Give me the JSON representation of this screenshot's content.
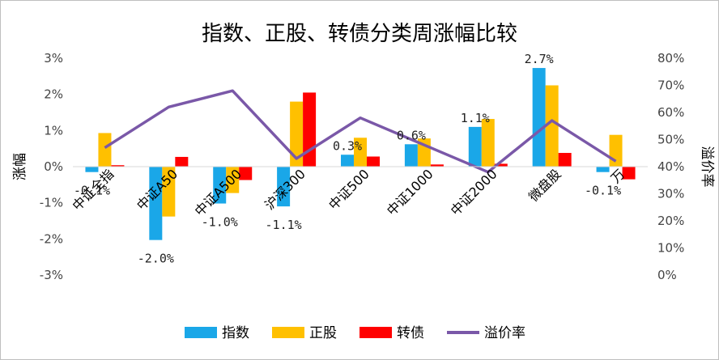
{
  "chart_data": {
    "type": "bar",
    "title": "指数、正股、转债分类周涨幅比较",
    "categories": [
      "中证全指",
      "中证A50",
      "中证A500",
      "沪深300",
      "中证500",
      "中证1000",
      "中证2000",
      "微盘股",
      "万得全A"
    ],
    "category_labels_visible": [
      "中证全指",
      "中证A50",
      "中证A500",
      "沪深300",
      "中证500",
      "中证1000",
      "中证2000",
      "微盘股",
      "万"
    ],
    "ylabel": "涨幅",
    "y2label": "溢价率",
    "ylim": [
      -3,
      3
    ],
    "y2lim": [
      0,
      80
    ],
    "yticks": [
      "3%",
      "2%",
      "1%",
      "0%",
      "-1%",
      "-2%",
      "-3%"
    ],
    "y2ticks": [
      "80%",
      "70%",
      "60%",
      "50%",
      "40%",
      "30%",
      "20%",
      "10%",
      "0%"
    ],
    "series": [
      {
        "name": "指数",
        "type": "bar",
        "color": "#1aa7e8",
        "values": [
          -0.15,
          -2.03,
          -1.02,
          -1.1,
          0.33,
          0.62,
          1.1,
          2.73,
          -0.15
        ]
      },
      {
        "name": "正股",
        "type": "bar",
        "color": "#ffc000",
        "values": [
          0.93,
          -1.38,
          -0.73,
          1.8,
          0.8,
          0.78,
          1.32,
          2.25,
          0.88
        ]
      },
      {
        "name": "转债",
        "type": "bar",
        "color": "#ff0000",
        "values": [
          0.04,
          0.27,
          -0.37,
          2.05,
          0.28,
          0.06,
          0.08,
          0.38,
          -0.35
        ]
      },
      {
        "name": "溢价率",
        "type": "line",
        "axis": "right",
        "color": "#7a58a8",
        "values": [
          47,
          62,
          68,
          43,
          58,
          48,
          38,
          57,
          42
        ]
      }
    ],
    "data_labels": [
      "-0.1%",
      "-2.0%",
      "-1.0%",
      "-1.1%",
      "0.3%",
      "0.6%",
      "1.1%",
      "2.7%",
      "-0.1%"
    ],
    "legend": "bottom",
    "grid": false
  }
}
